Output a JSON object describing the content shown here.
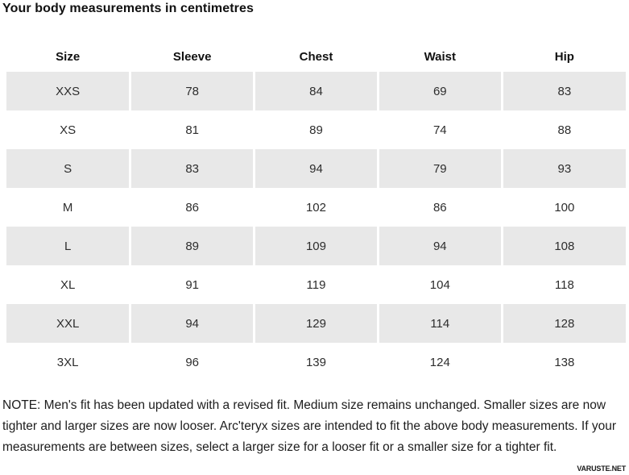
{
  "title": "Your body measurements in centimetres",
  "table": {
    "columns": [
      "Size",
      "Sleeve",
      "Chest",
      "Waist",
      "Hip"
    ],
    "rows": [
      {
        "size": "XXS",
        "values": [
          "78",
          "84",
          "69",
          "83"
        ]
      },
      {
        "size": "XS",
        "values": [
          "81",
          "89",
          "74",
          "88"
        ]
      },
      {
        "size": "S",
        "values": [
          "83",
          "94",
          "79",
          "93"
        ]
      },
      {
        "size": "M",
        "values": [
          "86",
          "102",
          "86",
          "100"
        ]
      },
      {
        "size": "L",
        "values": [
          "89",
          "109",
          "94",
          "108"
        ]
      },
      {
        "size": "XL",
        "values": [
          "91",
          "119",
          "104",
          "118"
        ]
      },
      {
        "size": "XXL",
        "values": [
          "94",
          "129",
          "114",
          "128"
        ]
      },
      {
        "size": "3XL",
        "values": [
          "96",
          "139",
          "124",
          "138"
        ]
      }
    ]
  },
  "note": "NOTE: Men's fit has been updated with a revised fit. Medium size remains unchanged. Smaller sizes are now tighter and larger sizes are now looser. Arc'teryx sizes are intended to fit the above body measurements. If your measurements are between sizes, select a larger size for a looser fit or a smaller size for a tighter fit.",
  "watermark": "VARUSTE.NET",
  "colors": {
    "row_stripe": "#e8e8e8",
    "heading_text": "#111111",
    "body_text": "#2d2d2d"
  }
}
